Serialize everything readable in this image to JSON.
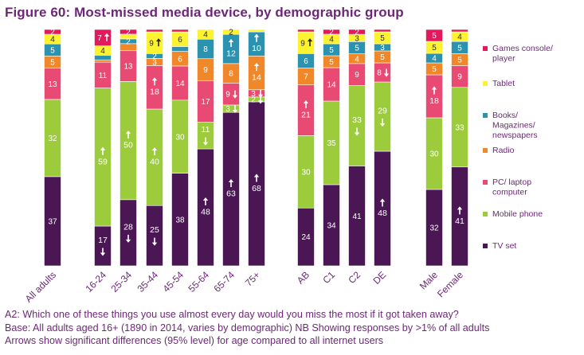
{
  "title": "Figure 60: Most-missed media device, by demographic group",
  "notes": {
    "line1": "A2:  Which one of these things you use almost every day would you miss the most if it got taken away?",
    "line2": "Base: All adults aged 16+ (1890 in 2014, varies by demographic) NB Showing responses by >1% of all adults",
    "line3": "Arrows show significant differences (95% level) for age compared to all internet users"
  },
  "chart_data": {
    "type": "bar",
    "stacked": true,
    "ylim": [
      0,
      100
    ],
    "grid": false,
    "legend_position": "right",
    "categories": [
      "All adults",
      "16-24",
      "25-34",
      "35-44",
      "45-54",
      "55-64",
      "65-74",
      "75+",
      "AB",
      "C1",
      "C2",
      "DE",
      "Male",
      "Female"
    ],
    "colors": {
      "TV set": "#4a1754",
      "Mobile phone": "#9ccc3c",
      "PC/ laptop computer": "#e84a74",
      "Radio": "#f0882a",
      "Books/ Magazines/ newspapers": "#2b93b0",
      "Tablet": "#fdf22f",
      "Games console/ player": "#e2195a"
    },
    "legend_order": [
      "Games console/ player",
      "Tablet",
      "Books/ Magazines/ newspapers",
      "Radio",
      "PC/ laptop computer",
      "Mobile phone",
      "TV set"
    ],
    "series": [
      {
        "name": "TV set",
        "values": [
          37,
          17,
          28,
          25,
          38,
          48,
          63,
          68,
          24,
          34,
          41,
          48,
          32,
          41
        ],
        "labels": [
          "37",
          "17",
          "28",
          "25",
          "38",
          "48",
          "63",
          "68",
          "24",
          "34",
          "41",
          "48",
          "32",
          "41"
        ],
        "arrows": [
          "",
          "down",
          "down",
          "down",
          "",
          "up",
          "up",
          "up",
          "",
          "",
          "",
          "up",
          "",
          "up"
        ]
      },
      {
        "name": "Mobile phone",
        "values": [
          32,
          59,
          50,
          40,
          30,
          11,
          3,
          2,
          30,
          35,
          33,
          29,
          30,
          33
        ],
        "labels": [
          "32",
          "59",
          "50",
          "40",
          "30",
          "11",
          "3",
          "2",
          "30",
          "35",
          "33",
          "29",
          "30",
          "33"
        ],
        "arrows": [
          "",
          "up",
          "up",
          "up",
          "",
          "down",
          "down",
          "down",
          "",
          "",
          "down",
          "down",
          "",
          ""
        ]
      },
      {
        "name": "PC/ laptop computer",
        "values": [
          13,
          11,
          13,
          18,
          14,
          17,
          9,
          3,
          21,
          14,
          9,
          8,
          18,
          9
        ],
        "labels": [
          "13",
          "11",
          "13",
          "18",
          "14",
          "17",
          "9",
          "3",
          "21",
          "14",
          "9",
          "8",
          "18",
          "9"
        ],
        "arrows": [
          "",
          "",
          "",
          "up",
          "",
          "",
          "down",
          "down",
          "up",
          "",
          "",
          "down",
          "up",
          ""
        ]
      },
      {
        "name": "Radio",
        "values": [
          5,
          1,
          3,
          3,
          6,
          9,
          8,
          14,
          7,
          5,
          4,
          5,
          5,
          5
        ],
        "labels": [
          "5",
          "",
          "",
          "3",
          "6",
          "9",
          "8",
          "14",
          "7",
          "5",
          "4",
          "5",
          "5",
          "5"
        ],
        "arrows": [
          "",
          "",
          "",
          "",
          "",
          "",
          "",
          "up",
          "",
          "",
          "",
          "",
          "",
          ""
        ]
      },
      {
        "name": "Books/ Magazines/ newspapers",
        "values": [
          5,
          2,
          2,
          2,
          2,
          8,
          12,
          10,
          6,
          5,
          5,
          3,
          4,
          5
        ],
        "labels": [
          "5",
          "",
          "2",
          "2",
          "",
          "8",
          "12",
          "10",
          "6",
          "5",
          "5",
          "3",
          "4",
          "5"
        ],
        "arrows": [
          "",
          "",
          "",
          "",
          "",
          "",
          "up",
          "up",
          "",
          "",
          "",
          "",
          "",
          ""
        ]
      },
      {
        "name": "Tablet",
        "values": [
          4,
          4,
          2,
          9,
          6,
          4,
          2,
          1,
          9,
          4,
          3,
          5,
          5,
          4
        ],
        "labels": [
          "4",
          "4",
          "",
          "9",
          "6",
          "4",
          "2",
          "",
          "9",
          "4",
          "3",
          "5",
          "5",
          "4"
        ],
        "arrows": [
          "",
          "",
          "",
          "up",
          "",
          "",
          "",
          "",
          "up",
          "",
          "",
          "",
          "",
          ""
        ]
      },
      {
        "name": "Games console/ player",
        "values": [
          2,
          7,
          2,
          1,
          1,
          0,
          0,
          0,
          1,
          2,
          2,
          1,
          5,
          1
        ],
        "labels": [
          "2",
          "7",
          "2",
          "",
          "",
          "",
          "",
          "",
          "",
          "2",
          "2",
          "",
          "5",
          ""
        ],
        "arrows": [
          "",
          "up",
          "",
          "",
          "",
          "",
          "",
          "",
          "",
          "",
          "",
          "",
          "",
          ""
        ]
      }
    ]
  }
}
